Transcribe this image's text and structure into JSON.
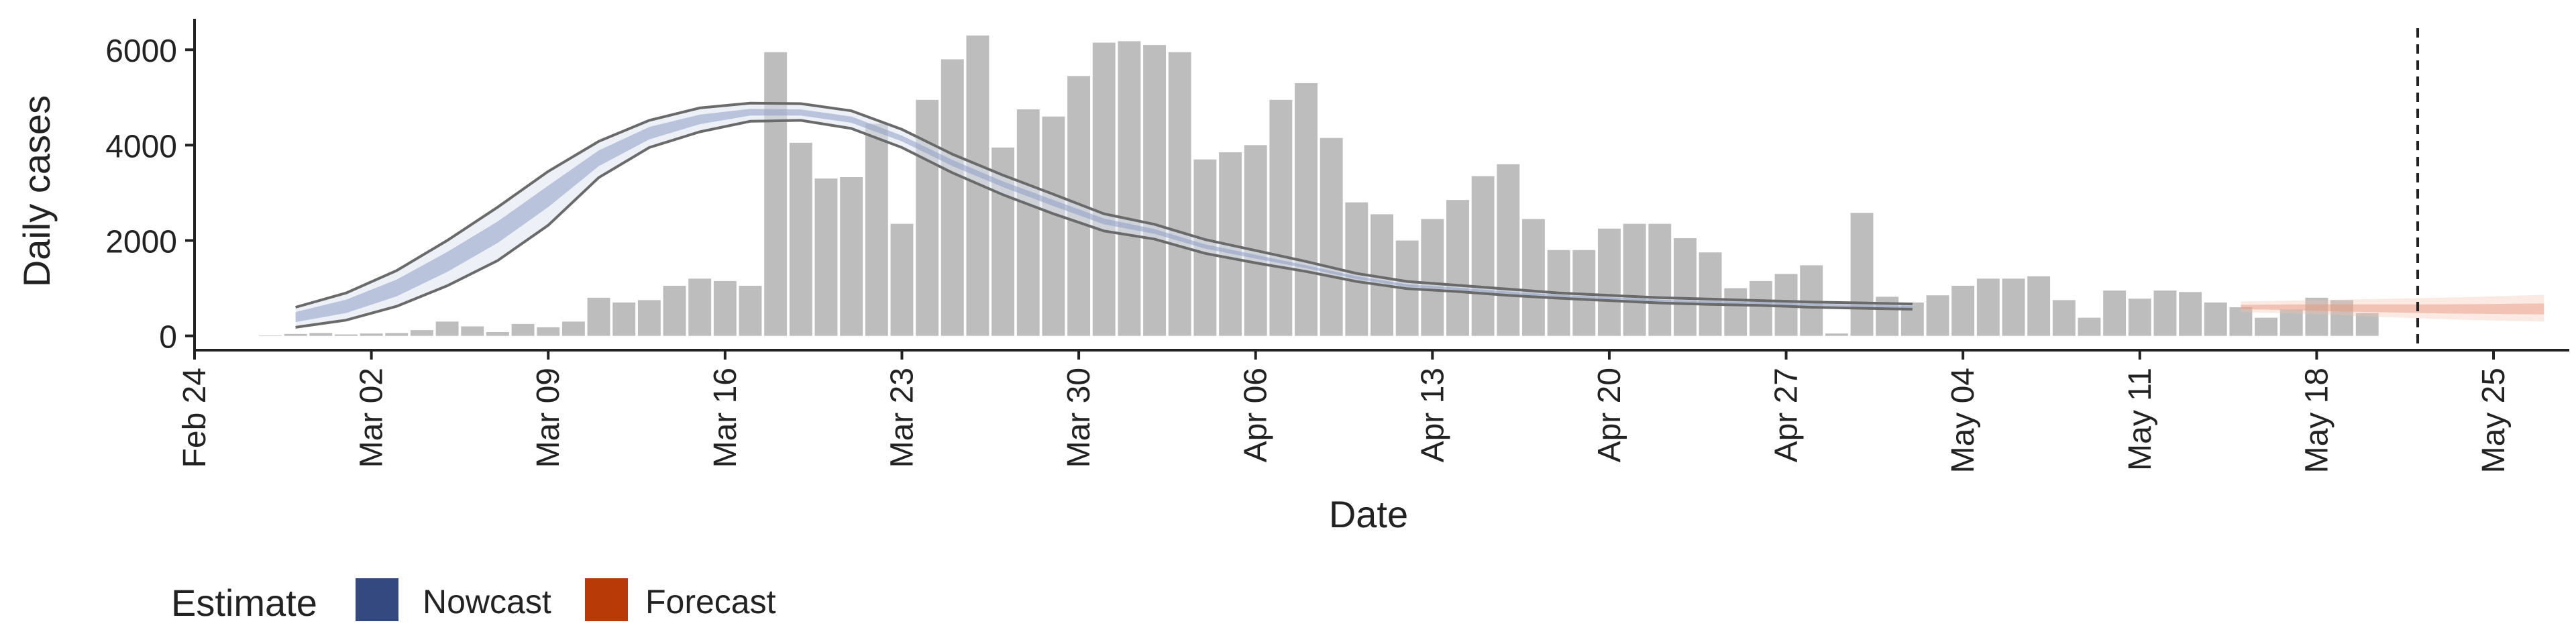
{
  "chart_data": {
    "type": "bar",
    "xlabel": "Date",
    "ylabel": "Daily cases",
    "ylim": [
      -300,
      6650
    ],
    "yticks": [
      0,
      2000,
      4000,
      6000
    ],
    "x_start": "2020-02-24",
    "x_end": "2020-05-28",
    "x_tick_labels": [
      "Feb 24",
      "Mar 02",
      "Mar 09",
      "Mar 16",
      "Mar 23",
      "Mar 30",
      "Apr 06",
      "Apr 13",
      "Apr 20",
      "Apr 27",
      "May 04",
      "May 11",
      "May 18",
      "May 25"
    ],
    "x_tick_dates": [
      "2020-02-24",
      "2020-03-02",
      "2020-03-09",
      "2020-03-16",
      "2020-03-23",
      "2020-03-30",
      "2020-04-06",
      "2020-04-13",
      "2020-04-20",
      "2020-04-27",
      "2020-05-04",
      "2020-05-11",
      "2020-05-18",
      "2020-05-25"
    ],
    "vline_date": "2020-05-22",
    "grid": false,
    "legend": {
      "title": "Estimate",
      "position": "bottom-left",
      "items": [
        {
          "name": "Nowcast",
          "color": "#33497f"
        },
        {
          "name": "Forecast",
          "color": "#b83a06"
        }
      ]
    },
    "bar_series": {
      "color": "#bdbdbd",
      "start_date": "2020-02-27",
      "values": [
        10,
        40,
        60,
        30,
        50,
        60,
        120,
        300,
        200,
        80,
        250,
        180,
        300,
        800,
        700,
        750,
        1050,
        1200,
        1150,
        1050,
        5950,
        4050,
        3300,
        3330,
        4450,
        2350,
        4950,
        5800,
        6300,
        3950,
        4750,
        4600,
        5450,
        6150,
        6180,
        6100,
        5950,
        3700,
        3850,
        4000,
        4950,
        5300,
        4150,
        2800,
        2550,
        2000,
        2450,
        2850,
        3350,
        3600,
        2450,
        1800,
        1800,
        2250,
        2350,
        2350,
        2050,
        1750,
        1000,
        1150,
        1300,
        1480,
        50,
        2580,
        820,
        700,
        850,
        1050,
        1200,
        1200,
        1250,
        750,
        380,
        950,
        780,
        950,
        920,
        700,
        600,
        380,
        550,
        800,
        750,
        480
      ]
    },
    "nowcast": {
      "start_date": "2020-02-28",
      "dates_every_days": 2,
      "outer_lower": [
        180,
        330,
        620,
        1050,
        1580,
        2320,
        3320,
        3950,
        4280,
        4500,
        4520,
        4350,
        3950,
        3420,
        2960,
        2560,
        2200,
        2030,
        1730,
        1530,
        1350,
        1140,
        990,
        930,
        850,
        790,
        740,
        690,
        660,
        640,
        600,
        580,
        560
      ],
      "inner_lower": [
        290,
        480,
        830,
        1340,
        1950,
        2700,
        3560,
        4120,
        4440,
        4620,
        4620,
        4470,
        4080,
        3560,
        3120,
        2720,
        2340,
        2140,
        1830,
        1620,
        1420,
        1190,
        1030,
        960,
        880,
        820,
        770,
        720,
        690,
        670,
        630,
        610,
        590
      ],
      "inner_upper": [
        500,
        760,
        1180,
        1760,
        2400,
        3150,
        3890,
        4380,
        4640,
        4760,
        4750,
        4600,
        4200,
        3690,
        3240,
        2850,
        2460,
        2240,
        1920,
        1700,
        1480,
        1250,
        1080,
        1010,
        930,
        860,
        810,
        760,
        730,
        710,
        680,
        650,
        630
      ],
      "outer_upper": [
        600,
        900,
        1370,
        2000,
        2700,
        3450,
        4080,
        4520,
        4780,
        4880,
        4870,
        4720,
        4330,
        3810,
        3370,
        2970,
        2560,
        2340,
        2020,
        1790,
        1560,
        1310,
        1140,
        1060,
        980,
        900,
        850,
        800,
        770,
        740,
        710,
        690,
        670
      ]
    },
    "forecast": {
      "start_date": "2020-05-15",
      "dates_every_days": 2,
      "outer_lower": [
        500,
        470,
        430,
        390,
        350,
        320,
        300
      ],
      "inner_lower": [
        560,
        540,
        510,
        490,
        470,
        460,
        450
      ],
      "inner_upper": [
        650,
        660,
        660,
        660,
        660,
        670,
        680
      ],
      "outer_upper": [
        720,
        740,
        760,
        780,
        800,
        830,
        860
      ]
    }
  }
}
